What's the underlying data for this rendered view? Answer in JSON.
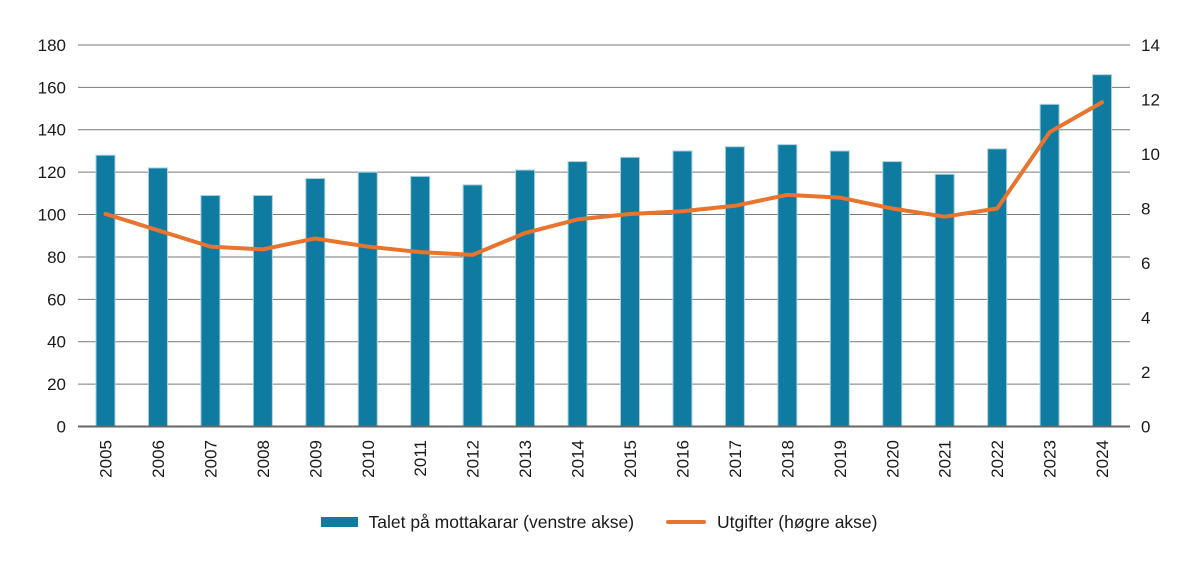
{
  "chart_data": {
    "type": "bar+line",
    "categories": [
      "2005",
      "2006",
      "2007",
      "2008",
      "2009",
      "2010",
      "2011",
      "2012",
      "2013",
      "2014",
      "2015",
      "2016",
      "2017",
      "2018",
      "2019",
      "2020",
      "2021",
      "2022",
      "2023",
      "2024"
    ],
    "series": [
      {
        "name": "Talet på mottakarar (venstre akse)",
        "type": "bar",
        "axis": "left",
        "color": "#0f7ba1",
        "values": [
          128,
          122,
          109,
          109,
          117,
          120,
          118,
          114,
          121,
          125,
          127,
          130,
          132,
          133,
          130,
          125,
          119,
          131,
          152,
          166
        ]
      },
      {
        "name": "Utgifter (høgre akse)",
        "type": "line",
        "axis": "right",
        "color": "#e8742d",
        "values": [
          7.8,
          7.2,
          6.6,
          6.5,
          6.9,
          6.6,
          6.4,
          6.3,
          7.1,
          7.6,
          7.8,
          7.9,
          8.1,
          8.5,
          8.4,
          8.0,
          7.7,
          8.0,
          10.8,
          11.9
        ]
      }
    ],
    "left_axis": {
      "min": 0,
      "max": 180,
      "ticks": [
        0,
        20,
        40,
        60,
        80,
        100,
        120,
        140,
        160,
        180
      ]
    },
    "right_axis": {
      "min": 0,
      "max": 14,
      "ticks": [
        0,
        2,
        4,
        6,
        8,
        10,
        12,
        14
      ]
    },
    "grid": "horizontal",
    "legend_position": "bottom",
    "colors": {
      "bar": "#0f7ba1",
      "bar_edge": "#a9d1de",
      "line": "#e8742d",
      "grid": "#7a7a7a",
      "baseline": "#666666",
      "text": "#1a1a1a"
    }
  }
}
